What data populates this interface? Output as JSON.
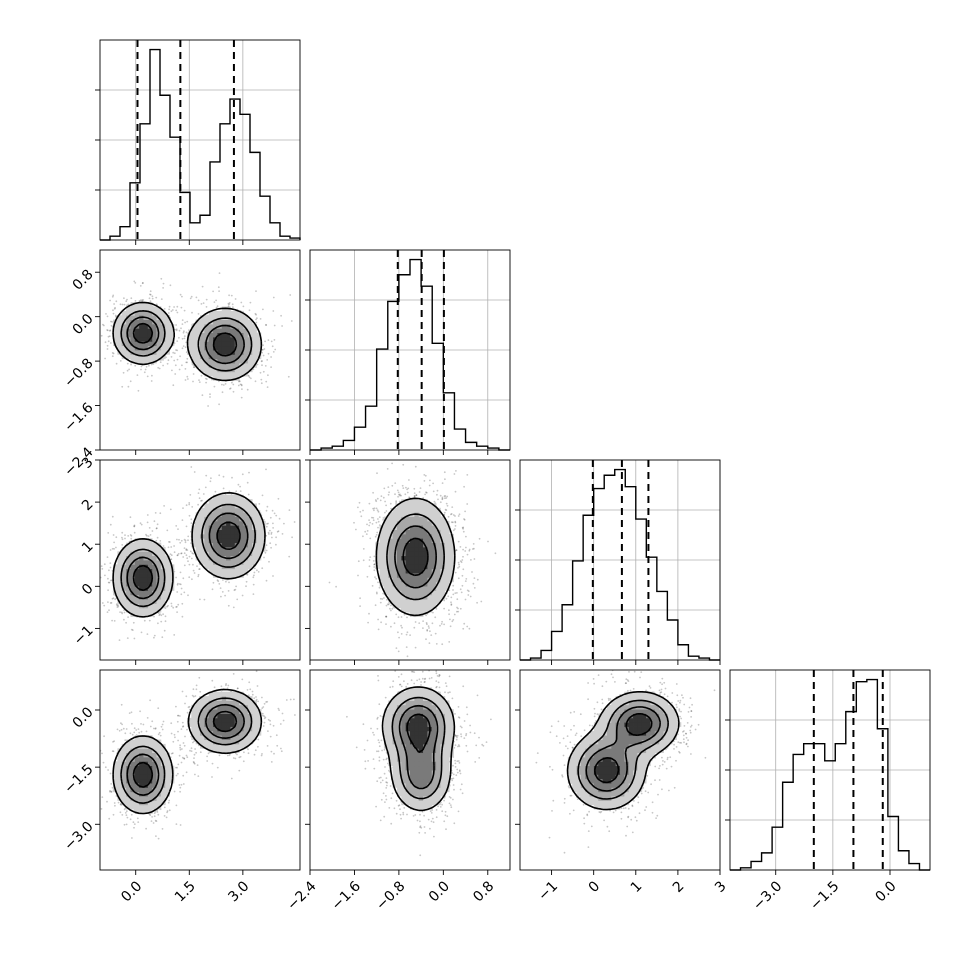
{
  "chart_data": {
    "type": "corner",
    "grid": true,
    "parameters": [
      {
        "range": [
          -1.0,
          4.6
        ],
        "ticks": [
          0.0,
          1.5,
          3.0
        ],
        "tick_labels": [
          "0.0",
          "1.5",
          "3.0"
        ],
        "quantiles": [
          0.05,
          1.25,
          2.75
        ],
        "hist_peak": 1.0,
        "hist_counts": [
          0.0,
          0.02,
          0.07,
          0.3,
          0.61,
          1.0,
          0.76,
          0.54,
          0.25,
          0.09,
          0.13,
          0.41,
          0.61,
          0.74,
          0.66,
          0.46,
          0.23,
          0.09,
          0.02,
          0.01
        ]
      },
      {
        "range": [
          -2.4,
          1.2
        ],
        "ticks": [
          -2.4,
          -1.6,
          -0.8,
          0.0,
          0.8
        ],
        "tick_labels": [
          "-2.4",
          "-1.6",
          "-0.8",
          "0.0",
          "0.8"
        ],
        "quantiles": [
          -0.82,
          -0.39,
          0.01
        ],
        "hist_peak": 1.0,
        "hist_counts": [
          0.0,
          0.01,
          0.02,
          0.05,
          0.12,
          0.23,
          0.53,
          0.78,
          0.92,
          1.0,
          0.86,
          0.56,
          0.3,
          0.11,
          0.04,
          0.02,
          0.01,
          0.0
        ]
      },
      {
        "range": [
          -1.75,
          3.0
        ],
        "ticks": [
          -1,
          0,
          1,
          2,
          3
        ],
        "tick_labels": [
          "-1",
          "0",
          "1",
          "2",
          "3"
        ],
        "quantiles": [
          -0.02,
          0.67,
          1.3
        ],
        "hist_peak": 1.0,
        "hist_counts": [
          0.0,
          0.01,
          0.05,
          0.15,
          0.29,
          0.52,
          0.76,
          0.9,
          0.97,
          1.0,
          0.91,
          0.74,
          0.54,
          0.36,
          0.21,
          0.08,
          0.02,
          0.01,
          0.0
        ]
      },
      {
        "range": [
          -4.2,
          1.05
        ],
        "ticks": [
          -3.0,
          -1.5,
          0.0
        ],
        "tick_labels": [
          "-3.0",
          "-1.5",
          "0.0"
        ],
        "quantiles": [
          -2.0,
          -0.96,
          -0.19
        ],
        "hist_peak": 1.0,
        "hist_counts": [
          0.0,
          0.01,
          0.04,
          0.08,
          0.2,
          0.41,
          0.54,
          0.59,
          0.59,
          0.51,
          0.59,
          0.74,
          0.88,
          0.89,
          0.66,
          0.25,
          0.09,
          0.03,
          0.0
        ]
      }
    ],
    "panels_2d": [
      {
        "row": 1,
        "col": 0,
        "modes": [
          {
            "x": 0.2,
            "y": -0.3,
            "sx": 0.45,
            "sy": 0.3,
            "w": 1.0
          },
          {
            "x": 2.5,
            "y": -0.5,
            "sx": 0.55,
            "sy": 0.35,
            "w": 1.0
          }
        ]
      },
      {
        "row": 2,
        "col": 0,
        "modes": [
          {
            "x": 0.2,
            "y": 0.2,
            "sx": 0.45,
            "sy": 0.5,
            "w": 1.0
          },
          {
            "x": 2.6,
            "y": 1.2,
            "sx": 0.55,
            "sy": 0.55,
            "w": 1.0
          }
        ]
      },
      {
        "row": 2,
        "col": 1,
        "modes": [
          {
            "x": -0.5,
            "y": 0.7,
            "sx": 0.38,
            "sy": 0.75,
            "w": 1.0
          }
        ]
      },
      {
        "row": 3,
        "col": 0,
        "modes": [
          {
            "x": 0.2,
            "y": -1.7,
            "sx": 0.45,
            "sy": 0.55,
            "w": 1.0
          },
          {
            "x": 2.5,
            "y": -0.3,
            "sx": 0.55,
            "sy": 0.45,
            "w": 1.0
          }
        ]
      },
      {
        "row": 3,
        "col": 1,
        "modes": [
          {
            "x": -0.45,
            "y": -0.4,
            "sx": 0.35,
            "sy": 0.55,
            "w": 1.0
          },
          {
            "x": -0.4,
            "y": -1.7,
            "sx": 0.3,
            "sy": 0.55,
            "w": 0.8
          }
        ]
      },
      {
        "row": 3,
        "col": 2,
        "modes": [
          {
            "x": 0.3,
            "y": -1.6,
            "sx": 0.5,
            "sy": 0.55,
            "w": 1.0
          },
          {
            "x": 1.1,
            "y": -0.35,
            "sx": 0.5,
            "sy": 0.45,
            "w": 1.0
          }
        ]
      }
    ]
  },
  "colors": {
    "line": "#000000",
    "grid": "#b0b0b0",
    "scatter": "#000000"
  }
}
